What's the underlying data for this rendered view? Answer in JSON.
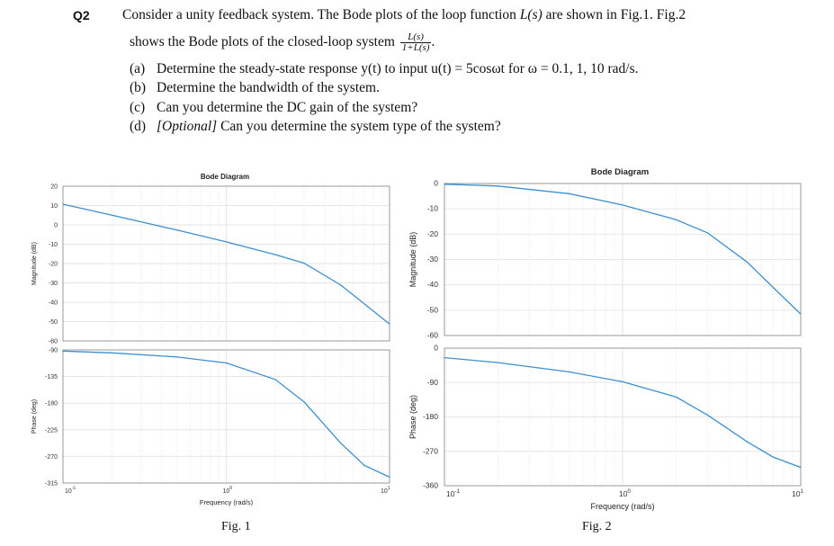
{
  "question": {
    "number": "Q2",
    "line1_pre": "Consider a unity feedback system. The Bode plots of the loop function ",
    "line1_math": "L(s)",
    "line1_post": " are shown in Fig.1. Fig.2",
    "line2_pre": "shows the Bode plots of  the closed-loop system ",
    "frac_num": "L(s)",
    "frac_den": "1+L(s)",
    "line2_post": ".",
    "items": [
      {
        "label": "(a)",
        "text": "Determine the steady-state response y(t) to input u(t) = 5cosωt for ω = 0.1,  1,  10 rad/s."
      },
      {
        "label": "(b)",
        "text": "Determine the bandwidth of the system."
      },
      {
        "label": "(c)",
        "text": "Can you determine the DC gain of the system?"
      },
      {
        "label": "(d)",
        "opt": "[Optional]",
        "text": "  Can you determine the system type of the system?"
      }
    ]
  },
  "figures": [
    {
      "caption": "Fig. 1"
    },
    {
      "caption": "Fig. 2"
    }
  ],
  "chart_data": [
    {
      "type": "line",
      "title": "Bode Diagram",
      "xlabel": "Frequency  (rad/s)",
      "xscale": "log",
      "xticks": [
        "10",
        "-1",
        "10",
        "0",
        "10",
        "1"
      ],
      "panels": [
        {
          "ylabel": "Magnitude (dB)",
          "ylim": [
            -60,
            20
          ],
          "yticks": [
            "20",
            "10",
            "0",
            "-10",
            "-20",
            "-30",
            "-40",
            "-50",
            "-60"
          ],
          "x": [
            0.1,
            0.2,
            0.5,
            1,
            2,
            3,
            5,
            7,
            10
          ],
          "y": [
            10.7,
            5.0,
            -2.7,
            -8.8,
            -15.4,
            -19.8,
            -31.0,
            -40.8,
            -51.3
          ]
        },
        {
          "ylabel": "Phase (deg)",
          "ylim": [
            -315,
            -90
          ],
          "yticks": [
            "-90",
            "-135",
            "-180",
            "-225",
            "-270",
            "-315"
          ],
          "x": [
            0.1,
            0.2,
            0.5,
            1,
            2,
            3,
            5,
            7,
            10
          ],
          "y": [
            -92,
            -95,
            -102,
            -112,
            -140,
            -178,
            -247,
            -285,
            -305
          ]
        }
      ],
      "grid": true
    },
    {
      "type": "line",
      "title": "Bode Diagram",
      "xlabel": "Frequency  (rad/s)",
      "xscale": "log",
      "xticks": [
        "10",
        "-1",
        "10",
        "0",
        "10",
        "1"
      ],
      "panels": [
        {
          "ylabel": "Magnitude (dB)",
          "ylim": [
            -60,
            0
          ],
          "yticks": [
            "0",
            "-10",
            "-20",
            "-30",
            "-40",
            "-50",
            "-60"
          ],
          "x": [
            0.1,
            0.2,
            0.5,
            1,
            2,
            3,
            5,
            7,
            10
          ],
          "y": [
            -0.3,
            -1.0,
            -4.0,
            -8.5,
            -14.3,
            -19.5,
            -31.0,
            -41.0,
            -51.5
          ]
        },
        {
          "ylabel": "Phase (deg)",
          "ylim": [
            -360,
            0
          ],
          "yticks": [
            "0",
            "-90",
            "-180",
            "-270",
            "-360"
          ],
          "x": [
            0.1,
            0.2,
            0.5,
            1,
            2,
            3,
            5,
            7,
            10
          ],
          "y": [
            -25,
            -38,
            -62,
            -88,
            -128,
            -175,
            -245,
            -285,
            -312
          ]
        }
      ],
      "grid": true
    }
  ]
}
